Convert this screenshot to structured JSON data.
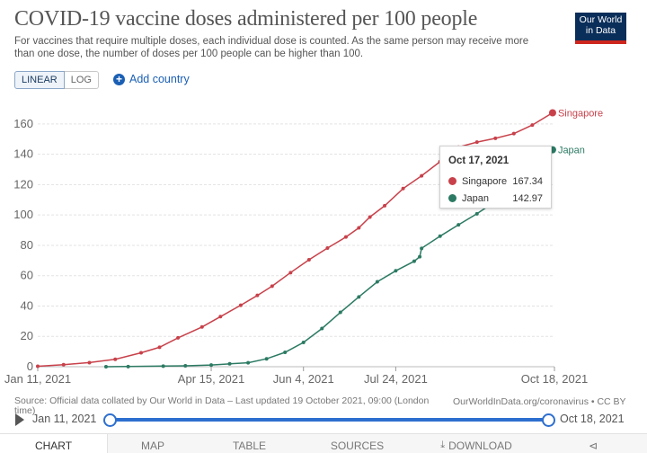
{
  "header": {
    "title": "COVID-19 vaccine doses administered per 100 people",
    "subtitle": "For vaccines that require multiple doses, each individual dose is counted. As the same person may receive more than one dose, the number of doses per 100 people can be higher than 100.",
    "logo": "Our World in Data"
  },
  "controls": {
    "linear_label": "LINEAR",
    "log_label": "LOG",
    "add_country_label": "Add country",
    "active_scale": "linear"
  },
  "tooltip": {
    "date": "Oct 17, 2021",
    "rows": [
      {
        "name": "Singapore",
        "value": "167.34"
      },
      {
        "name": "Japan",
        "value": "142.97"
      }
    ]
  },
  "footer": {
    "source": "Source: Official data collated by Our World in Data – Last updated 19 October 2021, 09:00 (London time)",
    "url": "OurWorldInData.org/coronavirus • CC BY"
  },
  "timeline": {
    "start": "Jan 11, 2021",
    "end": "Oct 18, 2021"
  },
  "tabs": [
    "CHART",
    "MAP",
    "TABLE",
    "SOURCES",
    "DOWNLOAD"
  ],
  "colors": {
    "singapore": "#c8414a",
    "japan": "#2c7a63",
    "accent": "#2d6fcf",
    "logo_bg": "#0a2e5a"
  },
  "icons": {
    "add": "plus-circle-icon",
    "play": "play-icon",
    "download": "download-icon",
    "share": "share-icon"
  },
  "chart_data": {
    "type": "line",
    "title": "COVID-19 vaccine doses administered per 100 people",
    "xlim": [
      "2021-01-11",
      "2021-10-18"
    ],
    "ylim": [
      0,
      170
    ],
    "y_ticks": [
      0,
      20,
      40,
      60,
      80,
      100,
      120,
      140,
      160
    ],
    "x_tick_labels": [
      "Jan 11, 2021",
      "Apr 15, 2021",
      "Jun 4, 2021",
      "Jul 24, 2021",
      "Oct 18, 2021"
    ],
    "x_tick_dates": [
      "2021-01-11",
      "2021-04-15",
      "2021-06-04",
      "2021-07-24",
      "2021-10-18"
    ],
    "grid": true,
    "series": [
      {
        "name": "Singapore",
        "points": [
          [
            "2021-01-11",
            0.3
          ],
          [
            "2021-01-25",
            1.3
          ],
          [
            "2021-02-08",
            2.7
          ],
          [
            "2021-02-22",
            4.9
          ],
          [
            "2021-03-08",
            9.2
          ],
          [
            "2021-03-18",
            12.8
          ],
          [
            "2021-03-28",
            19.0
          ],
          [
            "2021-04-10",
            26.2
          ],
          [
            "2021-04-20",
            33.0
          ],
          [
            "2021-05-01",
            40.5
          ],
          [
            "2021-05-10",
            47.0
          ],
          [
            "2021-05-18",
            53.1
          ],
          [
            "2021-05-28",
            62.0
          ],
          [
            "2021-06-07",
            70.5
          ],
          [
            "2021-06-17",
            78.2
          ],
          [
            "2021-06-27",
            85.5
          ],
          [
            "2021-07-04",
            91.5
          ],
          [
            "2021-07-10",
            98.6
          ],
          [
            "2021-07-18",
            106.1
          ],
          [
            "2021-07-28",
            117.4
          ],
          [
            "2021-08-07",
            125.8
          ],
          [
            "2021-08-17",
            135.1
          ],
          [
            "2021-08-27",
            144.7
          ],
          [
            "2021-09-06",
            148.0
          ],
          [
            "2021-09-16",
            150.5
          ],
          [
            "2021-09-26",
            153.6
          ],
          [
            "2021-10-06",
            159.3
          ],
          [
            "2021-10-17",
            167.34
          ]
        ]
      },
      {
        "name": "Japan",
        "points": [
          [
            "2021-02-17",
            0.0
          ],
          [
            "2021-03-01",
            0.1
          ],
          [
            "2021-03-20",
            0.4
          ],
          [
            "2021-04-01",
            0.6
          ],
          [
            "2021-04-15",
            1.1
          ],
          [
            "2021-04-25",
            1.9
          ],
          [
            "2021-05-05",
            2.6
          ],
          [
            "2021-05-15",
            5.2
          ],
          [
            "2021-05-25",
            9.5
          ],
          [
            "2021-06-04",
            16.0
          ],
          [
            "2021-06-14",
            25.2
          ],
          [
            "2021-06-24",
            35.8
          ],
          [
            "2021-07-04",
            46.0
          ],
          [
            "2021-07-14",
            56.0
          ],
          [
            "2021-07-24",
            63.2
          ],
          [
            "2021-08-03",
            69.5
          ],
          [
            "2021-08-06",
            72.5
          ],
          [
            "2021-08-07",
            78.0
          ],
          [
            "2021-08-17",
            86.0
          ],
          [
            "2021-08-27",
            93.5
          ],
          [
            "2021-09-06",
            100.8
          ],
          [
            "2021-09-16",
            109.0
          ],
          [
            "2021-09-26",
            117.0
          ],
          [
            "2021-10-06",
            130.0
          ],
          [
            "2021-10-17",
            142.97
          ]
        ]
      }
    ]
  }
}
